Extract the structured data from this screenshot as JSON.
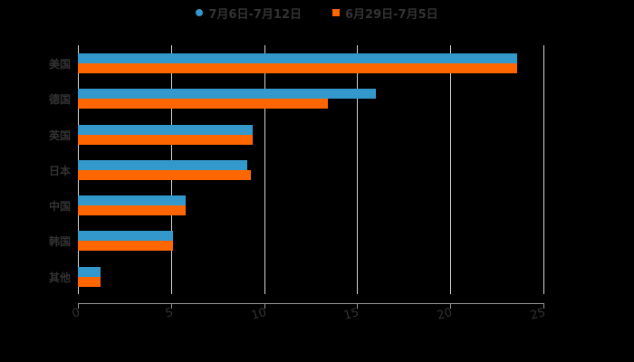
{
  "chart_data": {
    "type": "bar",
    "orientation": "horizontal",
    "title": "",
    "xlabel": "",
    "ylabel": "",
    "categories": [
      "美国",
      "德国",
      "英国",
      "日本",
      "中国",
      "韩国",
      "其他"
    ],
    "series": [
      {
        "name": "7月6日-7月12日",
        "color": "#3399cc",
        "marker": "circle",
        "values": [
          23.6,
          16.0,
          9.4,
          9.1,
          5.8,
          5.1,
          1.2
        ]
      },
      {
        "name": "6月29日-7月5日",
        "color": "#ff6600",
        "marker": "square",
        "values": [
          23.6,
          13.4,
          9.4,
          9.3,
          5.8,
          5.1,
          1.2
        ]
      }
    ],
    "xlim": [
      0,
      25
    ],
    "xticks": [
      "0",
      "5",
      "10",
      "15",
      "20",
      "25"
    ],
    "grid": true,
    "legend_position": "top"
  }
}
